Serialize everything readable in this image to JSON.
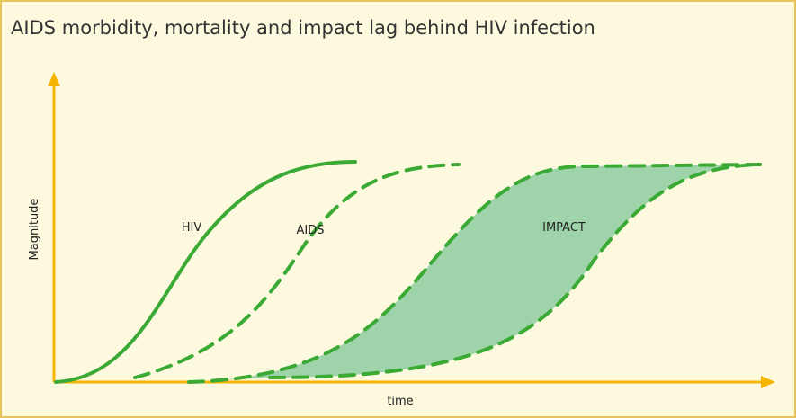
{
  "title": "AIDS morbidity, mortality and impact lag behind HIV infection",
  "y_axis_label": "Magnitude",
  "x_axis_label": "time",
  "curves": [
    {
      "label": "HIV"
    },
    {
      "label": "AIDS"
    },
    {
      "label": "IMPACT"
    }
  ]
}
